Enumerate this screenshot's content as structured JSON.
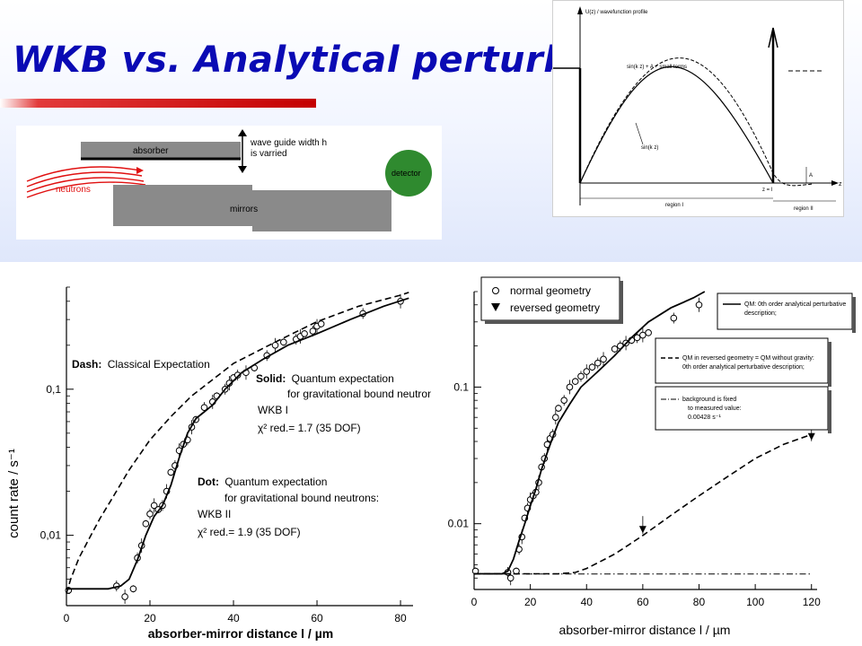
{
  "slide": {
    "title": "WKB vs. Analytical perturbativ"
  },
  "setup_diagram": {
    "absorber_label": "absorber",
    "width_label_1": "wave guide width h",
    "width_label_2": "is varried",
    "neutrons_label": "neutrons",
    "mirrors_label": "mirrors",
    "detector_label": "detector"
  },
  "wavefunction_diagram": {
    "y_axis_label": "U(z) / wavefunction profile",
    "z_label": "z",
    "dashed_label": "sin(k z) + A + small terms",
    "solid_label": "sin(k z)",
    "A_label": "A",
    "z1_label": "z = l",
    "region1_label": "region I",
    "region2_label": "region II"
  },
  "colors": {
    "title": "#0a0ab4",
    "rule": "#c40000",
    "neutrons": "#e01010",
    "detector": "#2f8a2f",
    "blocks": "#8a8a8a"
  },
  "chart_data": [
    {
      "type": "scatter",
      "scale_y": "log",
      "ylabel": "count rate / s⁻¹",
      "xlabel": "absorber-mirror distance l / µm",
      "xlim": [
        0,
        83
      ],
      "ylim": [
        0.0033,
        0.5
      ],
      "x_ticks": [
        "0",
        "20",
        "40",
        "60",
        "80"
      ],
      "y_ticks": [
        {
          "value": 0.1,
          "label": "0,1"
        },
        {
          "value": 0.01,
          "label": "0,01"
        }
      ],
      "annotations": {
        "dash_head": "Dash:",
        "dash_text": "Classical Expectation",
        "solid_head": "Solid:",
        "solid_text_1": "Quantum expectation",
        "solid_text_2": "for gravitational bound neutrons:",
        "solid_method": "WKB I",
        "solid_chi": "χ² red.= 1.7 (35 DOF)",
        "dot_head": "Dot:",
        "dot_text_1": "Quantum expectation",
        "dot_text_2": "for gravitational bound neutrons:",
        "dot_method": "WKB II",
        "dot_chi": "χ² red.= 1.9 (35 DOF)"
      },
      "series": [
        {
          "style": "points",
          "x": [
            0.5,
            12,
            14,
            16,
            17,
            18,
            19,
            20,
            21,
            22,
            23,
            24,
            25,
            26,
            27,
            28,
            29,
            30,
            31,
            33,
            35,
            36,
            38,
            39,
            40,
            41,
            43,
            45,
            48,
            50,
            52,
            55,
            56,
            57,
            59,
            60,
            61,
            71,
            80
          ],
          "y": [
            0.0042,
            0.0045,
            0.0038,
            0.0043,
            0.007,
            0.0085,
            0.012,
            0.014,
            0.016,
            0.015,
            0.016,
            0.02,
            0.027,
            0.03,
            0.038,
            0.042,
            0.045,
            0.055,
            0.062,
            0.075,
            0.082,
            0.09,
            0.1,
            0.11,
            0.12,
            0.125,
            0.13,
            0.14,
            0.17,
            0.2,
            0.21,
            0.22,
            0.23,
            0.24,
            0.25,
            0.27,
            0.28,
            0.33,
            0.4
          ]
        },
        {
          "style": "solid",
          "x": [
            0,
            10,
            13,
            15,
            17,
            19,
            21,
            23,
            25,
            27,
            29,
            31,
            33,
            35,
            38,
            42,
            47,
            53,
            60,
            68,
            76,
            82
          ],
          "y": [
            0.0043,
            0.0043,
            0.0045,
            0.005,
            0.0068,
            0.01,
            0.0135,
            0.016,
            0.022,
            0.034,
            0.05,
            0.063,
            0.07,
            0.078,
            0.1,
            0.13,
            0.16,
            0.2,
            0.24,
            0.3,
            0.37,
            0.42
          ]
        },
        {
          "style": "dashed",
          "x": [
            0,
            1,
            3,
            5,
            8,
            11,
            15,
            20,
            25,
            30,
            40,
            50,
            60,
            70,
            80,
            82
          ],
          "y": [
            0.004,
            0.005,
            0.007,
            0.009,
            0.013,
            0.018,
            0.028,
            0.045,
            0.065,
            0.09,
            0.15,
            0.21,
            0.29,
            0.37,
            0.44,
            0.46
          ]
        }
      ]
    },
    {
      "type": "scatter",
      "scale_y": "log",
      "xlabel": "absorber-mirror distance l / µm",
      "xlim": [
        0,
        122
      ],
      "ylim": [
        0.0033,
        0.5
      ],
      "x_ticks": [
        "0",
        "20",
        "40",
        "60",
        "80",
        "100",
        "120"
      ],
      "y_ticks": [
        {
          "value": 0.1,
          "label": "0.1"
        },
        {
          "value": 0.01,
          "label": "0.01"
        }
      ],
      "legend": {
        "normal": "normal geometry",
        "reversed": "reversed geometry"
      },
      "notes": {
        "qm_1": "QM: 0th order analytical perturbative",
        "qm_2": "description;",
        "rev_1": "QM in reversed geometry = QM without gravity:",
        "rev_2": "0th order analytical perturbative description;",
        "bg_1": "background is fixed",
        "bg_2": "to measured value:",
        "bg_3": "0.00428 s⁻¹"
      },
      "series": [
        {
          "style": "points",
          "name": "normal geometry",
          "x": [
            0.5,
            12,
            13,
            15,
            16,
            17,
            18,
            19,
            20,
            21,
            22,
            23,
            24,
            25,
            26,
            27,
            28,
            29,
            30,
            32,
            34,
            36,
            38,
            40,
            42,
            44,
            46,
            50,
            52,
            54,
            56,
            58,
            60,
            62,
            71,
            80
          ],
          "y": [
            0.0045,
            0.0044,
            0.004,
            0.0045,
            0.0065,
            0.008,
            0.011,
            0.013,
            0.015,
            0.016,
            0.017,
            0.02,
            0.026,
            0.03,
            0.038,
            0.042,
            0.045,
            0.06,
            0.07,
            0.08,
            0.1,
            0.11,
            0.12,
            0.13,
            0.14,
            0.15,
            0.16,
            0.19,
            0.2,
            0.21,
            0.22,
            0.23,
            0.24,
            0.25,
            0.32,
            0.4
          ]
        },
        {
          "style": "triangles",
          "name": "reversed geometry",
          "x": [
            60,
            120
          ],
          "y": [
            0.0092,
            0.044
          ]
        },
        {
          "style": "solid",
          "x": [
            0,
            10,
            12,
            14,
            16,
            18,
            20,
            22,
            24,
            26,
            28,
            30,
            34,
            38,
            44,
            50,
            56,
            62,
            70,
            78,
            82
          ],
          "y": [
            0.0043,
            0.0043,
            0.0045,
            0.0055,
            0.0075,
            0.01,
            0.0135,
            0.018,
            0.025,
            0.033,
            0.043,
            0.055,
            0.075,
            0.1,
            0.13,
            0.17,
            0.23,
            0.3,
            0.38,
            0.45,
            0.5
          ]
        },
        {
          "style": "dashed",
          "x": [
            0,
            30,
            36,
            40,
            45,
            50,
            55,
            60,
            65,
            70,
            80,
            90,
            100,
            110,
            120
          ],
          "y": [
            0.0043,
            0.0043,
            0.0044,
            0.0047,
            0.0053,
            0.006,
            0.007,
            0.0082,
            0.0097,
            0.0115,
            0.016,
            0.022,
            0.03,
            0.038,
            0.045
          ]
        },
        {
          "style": "dashdot",
          "x": [
            0,
            120
          ],
          "y": [
            0.00428,
            0.00428
          ]
        }
      ]
    }
  ]
}
